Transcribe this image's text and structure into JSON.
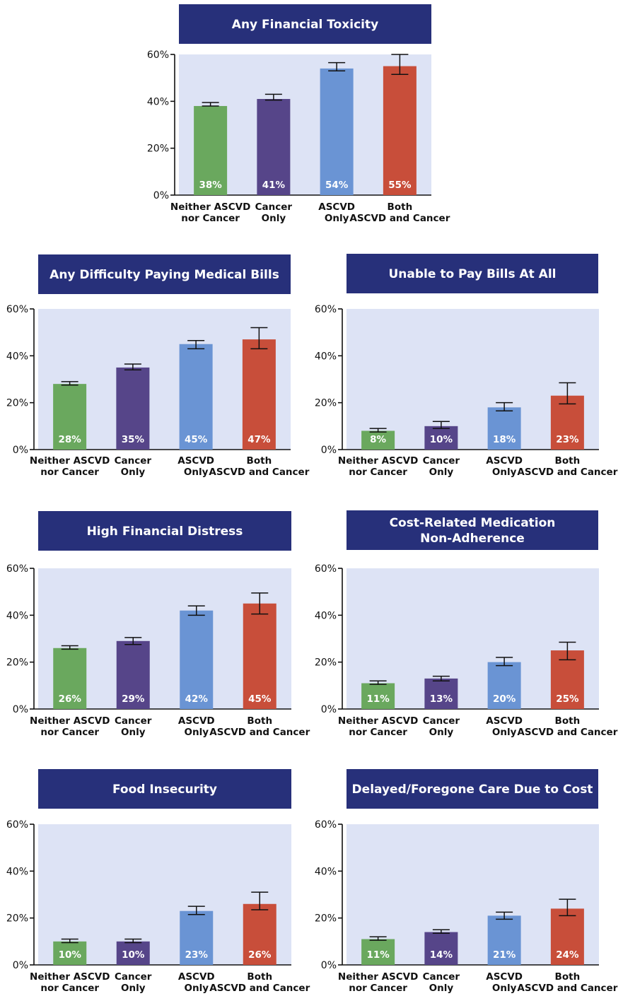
{
  "colors": {
    "title_bg": "#27307a",
    "plot_bg": "#dde3f5",
    "bars": [
      "#6aa85e",
      "#564589",
      "#6a94d4",
      "#c84e3a"
    ]
  },
  "chart_data": [
    {
      "type": "bar",
      "title": [
        "Any Financial Toxicity"
      ],
      "categories": [
        [
          "Neither ASCVD",
          "nor Cancer"
        ],
        [
          "Cancer",
          "Only"
        ],
        [
          "ASCVD",
          "Only"
        ],
        [
          "Both",
          "ASCVD and Cancer"
        ]
      ],
      "values": [
        38,
        41,
        54,
        55
      ],
      "value_labels": [
        "38%",
        "41%",
        "54%",
        "55%"
      ],
      "error_low": [
        38,
        40.5,
        53,
        51.5
      ],
      "error_high": [
        39.5,
        43,
        56.5,
        60
      ],
      "ylim": [
        0,
        60
      ],
      "yticks": [
        "0%",
        "20%",
        "40%",
        "60%"
      ],
      "grid": false
    },
    {
      "type": "bar",
      "title": [
        "Any Difficulty Paying Medical Bills"
      ],
      "categories": [
        [
          "Neither ASCVD",
          "nor Cancer"
        ],
        [
          "Cancer",
          "Only"
        ],
        [
          "ASCVD",
          "Only"
        ],
        [
          "Both",
          "ASCVD and Cancer"
        ]
      ],
      "values": [
        28,
        35,
        45,
        47
      ],
      "value_labels": [
        "28%",
        "35%",
        "45%",
        "47%"
      ],
      "error_low": [
        27.5,
        34,
        43,
        43
      ],
      "error_high": [
        29,
        36.5,
        46.5,
        52
      ],
      "ylim": [
        0,
        60
      ],
      "yticks": [
        "0%",
        "20%",
        "40%",
        "60%"
      ],
      "grid": false
    },
    {
      "type": "bar",
      "title": [
        "Unable to Pay Bills At All"
      ],
      "categories": [
        [
          "Neither ASCVD",
          "nor Cancer"
        ],
        [
          "Cancer",
          "Only"
        ],
        [
          "ASCVD",
          "Only"
        ],
        [
          "Both",
          "ASCVD and Cancer"
        ]
      ],
      "values": [
        8,
        10,
        18,
        23
      ],
      "value_labels": [
        "8%",
        "10%",
        "18%",
        "23%"
      ],
      "error_low": [
        7.5,
        9,
        16.5,
        19.5
      ],
      "error_high": [
        9,
        12,
        20,
        28.5
      ],
      "ylim": [
        0,
        60
      ],
      "yticks": [
        "0%",
        "20%",
        "40%",
        "60%"
      ],
      "grid": false
    },
    {
      "type": "bar",
      "title": [
        "High Financial Distress"
      ],
      "categories": [
        [
          "Neither ASCVD",
          "nor Cancer"
        ],
        [
          "Cancer",
          "Only"
        ],
        [
          "ASCVD",
          "Only"
        ],
        [
          "Both",
          "ASCVD and Cancer"
        ]
      ],
      "values": [
        26,
        29,
        42,
        45
      ],
      "value_labels": [
        "26%",
        "29%",
        "42%",
        "45%"
      ],
      "error_low": [
        25.5,
        27.5,
        40,
        40.5
      ],
      "error_high": [
        27,
        30.5,
        44,
        49.5
      ],
      "ylim": [
        0,
        60
      ],
      "yticks": [
        "0%",
        "20%",
        "40%",
        "60%"
      ],
      "grid": false
    },
    {
      "type": "bar",
      "title": [
        "Cost-Related Medication",
        "Non-Adherence"
      ],
      "categories": [
        [
          "Neither ASCVD",
          "nor Cancer"
        ],
        [
          "Cancer",
          "Only"
        ],
        [
          "ASCVD",
          "Only"
        ],
        [
          "Both",
          "ASCVD and Cancer"
        ]
      ],
      "values": [
        11,
        13,
        20,
        25
      ],
      "value_labels": [
        "11%",
        "13%",
        "20%",
        "25%"
      ],
      "error_low": [
        10.5,
        12,
        18.5,
        21
      ],
      "error_high": [
        12,
        14,
        22,
        28.5
      ],
      "ylim": [
        0,
        60
      ],
      "yticks": [
        "0%",
        "20%",
        "40%",
        "60%"
      ],
      "grid": false
    },
    {
      "type": "bar",
      "title": [
        "Food Insecurity"
      ],
      "categories": [
        [
          "Neither ASCVD",
          "nor Cancer"
        ],
        [
          "Cancer",
          "Only"
        ],
        [
          "ASCVD",
          "Only"
        ],
        [
          "Both",
          "ASCVD and Cancer"
        ]
      ],
      "values": [
        10,
        10,
        23,
        26
      ],
      "value_labels": [
        "10%",
        "10%",
        "23%",
        "26%"
      ],
      "error_low": [
        9.5,
        9.5,
        21.5,
        23.5
      ],
      "error_high": [
        11,
        11,
        25,
        31
      ],
      "ylim": [
        0,
        60
      ],
      "yticks": [
        "0%",
        "20%",
        "40%",
        "60%"
      ],
      "grid": false
    },
    {
      "type": "bar",
      "title": [
        "Delayed/Foregone Care Due to Cost"
      ],
      "categories": [
        [
          "Neither ASCVD",
          "nor Cancer"
        ],
        [
          "Cancer",
          "Only"
        ],
        [
          "ASCVD",
          "Only"
        ],
        [
          "Both",
          "ASCVD and Cancer"
        ]
      ],
      "values": [
        11,
        14,
        21,
        24
      ],
      "value_labels": [
        "11%",
        "14%",
        "21%",
        "24%"
      ],
      "error_low": [
        10.5,
        13.5,
        19.5,
        21
      ],
      "error_high": [
        12,
        15,
        22.5,
        28
      ],
      "ylim": [
        0,
        60
      ],
      "yticks": [
        "0%",
        "20%",
        "40%",
        "60%"
      ],
      "grid": false
    }
  ]
}
